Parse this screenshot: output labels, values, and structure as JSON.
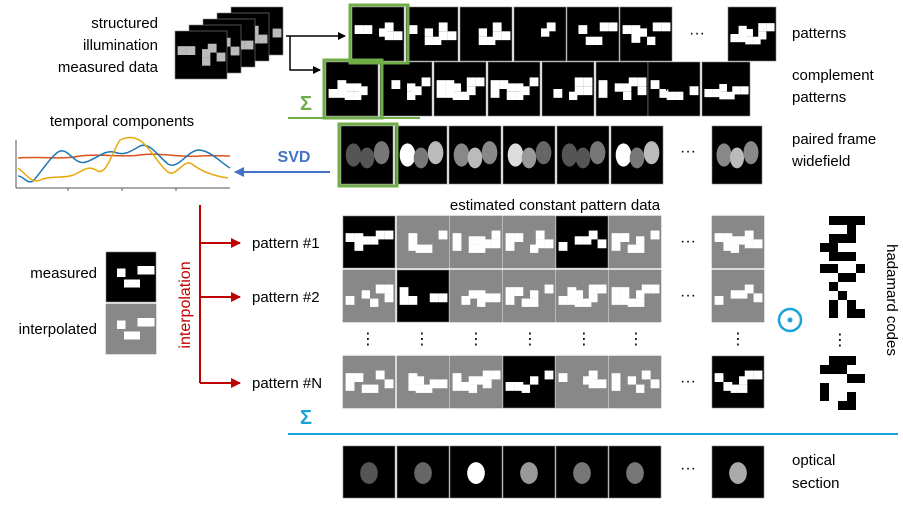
{
  "input_stack": {
    "label_lines": [
      "structured",
      "illumination",
      "measured data"
    ]
  },
  "rows": {
    "patterns": {
      "label_lines": [
        "patterns"
      ]
    },
    "complement": {
      "label_lines": [
        "complement",
        "patterns"
      ]
    },
    "paired": {
      "label_lines": [
        "paired frame",
        "widefield"
      ]
    },
    "optical": {
      "label_lines": [
        "optical",
        "section"
      ]
    }
  },
  "sum_symbol": "Σ",
  "ellipsis": "···",
  "vdots": "⋮",
  "temporal": {
    "title": "temporal components",
    "series_colors": [
      "#1f77b4",
      "#e8a80c",
      "#d9531e"
    ]
  },
  "svd": {
    "label": "SVD",
    "color": "#4472c4"
  },
  "estimated": {
    "title": "estimated constant pattern data",
    "patterns": [
      "pattern #1",
      "pattern #2",
      "pattern #N"
    ]
  },
  "legend": {
    "measured": "measured",
    "interpolated": "interpolated"
  },
  "interpolation": {
    "label": "interpolation",
    "color": "#c00000"
  },
  "hadamard": {
    "label": "hadamard codes",
    "odot_color": "#1aa3d9"
  },
  "colors": {
    "green": "#70ad47",
    "blue_sum": "#1aa3d9"
  }
}
